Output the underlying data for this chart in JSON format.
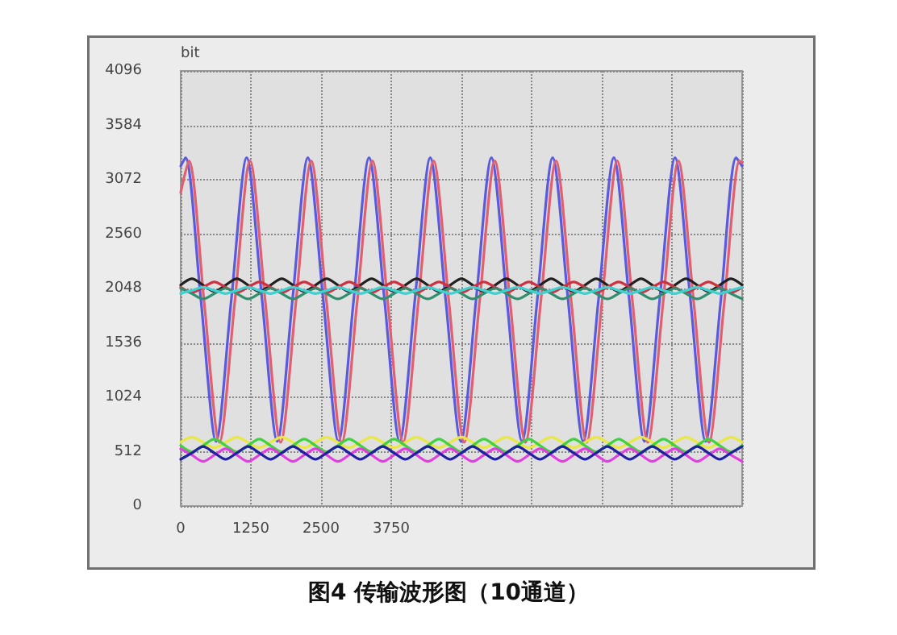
{
  "chart_data": {
    "type": "line",
    "title": "图4 传输波形图（10通道）",
    "ylabel": "bit",
    "x": [
      0,
      200,
      400,
      600,
      800,
      1000,
      1200,
      1400,
      1600,
      1800,
      2000,
      2200,
      2400,
      2600,
      2800,
      3000,
      3200,
      3400,
      3600,
      3800,
      4000,
      4200,
      4400,
      4600,
      4800,
      5000,
      5200,
      5400,
      5600,
      5800,
      6000,
      6200,
      6400,
      6600,
      6800,
      7000,
      7200,
      7400,
      7600,
      7800,
      8000,
      8200,
      8400,
      8600,
      8800,
      9000,
      9200,
      9400,
      9600,
      9800,
      10000
    ],
    "series": [
      {
        "color": "#5a5ae0",
        "x": [
          0,
          85,
          358,
          630,
          903,
          1175,
          1448,
          1720,
          1993,
          2265,
          2538,
          2810,
          3083,
          3355,
          3628,
          3900,
          4173,
          4445,
          4718,
          4990,
          5263,
          5535,
          5808,
          6080,
          6353,
          6625,
          6898,
          7170,
          7443,
          7715,
          7988,
          8260,
          8533,
          8805,
          9078,
          9350,
          9623,
          9895,
          10000
        ],
        "values": [
          3200,
          3280,
          1950,
          610,
          1950,
          3280,
          1950,
          610,
          1950,
          3280,
          1950,
          610,
          1950,
          3280,
          1950,
          610,
          1950,
          3280,
          1950,
          610,
          1950,
          3280,
          1950,
          610,
          1950,
          3280,
          1950,
          610,
          1950,
          3280,
          1950,
          610,
          1950,
          3280,
          1950,
          610,
          1950,
          3280,
          3200
        ]
      },
      {
        "color": "#e06070",
        "x": [
          0,
          145,
          418,
          690,
          963,
          1235,
          1508,
          1780,
          2053,
          2325,
          2598,
          2870,
          3143,
          3415,
          3688,
          3960,
          4233,
          4505,
          4778,
          5050,
          5323,
          5595,
          5868,
          6140,
          6413,
          6685,
          6958,
          7230,
          7503,
          7775,
          8048,
          8320,
          8593,
          8865,
          9138,
          9410,
          9683,
          9955,
          10000
        ],
        "values": [
          2950,
          3250,
          1920,
          600,
          1920,
          3250,
          1920,
          600,
          1920,
          3250,
          1920,
          600,
          1920,
          3250,
          1920,
          600,
          1920,
          3250,
          1920,
          600,
          1920,
          3250,
          1920,
          600,
          1920,
          3250,
          1920,
          600,
          1920,
          3250,
          1920,
          600,
          1920,
          3250,
          1920,
          600,
          1920,
          3250,
          3230
        ]
      },
      {
        "color": "#202020",
        "values": [
          2080,
          2140,
          2080,
          2020,
          2080,
          2140,
          2080,
          2020,
          2080,
          2140,
          2080,
          2020,
          2080,
          2140,
          2080,
          2020,
          2080,
          2140,
          2080,
          2020,
          2080,
          2140,
          2080,
          2020,
          2080,
          2140,
          2080,
          2020,
          2080,
          2140,
          2080,
          2020,
          2080,
          2140,
          2080,
          2020,
          2080,
          2140,
          2080,
          2020,
          2080,
          2140,
          2080,
          2020,
          2080,
          2140,
          2080,
          2020,
          2080,
          2140,
          2080
        ]
      },
      {
        "color": "#d03040",
        "values": [
          2060,
          2010,
          2060,
          2110,
          2060,
          2010,
          2060,
          2110,
          2060,
          2010,
          2060,
          2110,
          2060,
          2010,
          2060,
          2110,
          2060,
          2010,
          2060,
          2110,
          2060,
          2010,
          2060,
          2110,
          2060,
          2010,
          2060,
          2110,
          2060,
          2010,
          2060,
          2110,
          2060,
          2010,
          2060,
          2110,
          2060,
          2010,
          2060,
          2110,
          2060,
          2010,
          2060,
          2110,
          2060,
          2010,
          2060,
          2110,
          2060,
          2010,
          2060
        ]
      },
      {
        "color": "#2f8f6f",
        "values": [
          2050,
          2000,
          1950,
          2000,
          2050,
          2000,
          1950,
          2000,
          2050,
          2000,
          1950,
          2000,
          2050,
          2000,
          1950,
          2000,
          2050,
          2000,
          1950,
          2000,
          2050,
          2000,
          1950,
          2000,
          2050,
          2000,
          1950,
          2000,
          2050,
          2000,
          1950,
          2000,
          2050,
          2000,
          1950,
          2000,
          2050,
          2000,
          1950,
          2000,
          2050,
          2000,
          1950,
          2000,
          2050,
          2000,
          1950,
          2000,
          2050,
          2000,
          1950
        ]
      },
      {
        "color": "#40d0d0",
        "values": [
          2000,
          2030,
          2060,
          2030,
          2000,
          2030,
          2060,
          2030,
          2000,
          2030,
          2060,
          2030,
          2000,
          2030,
          2060,
          2030,
          2000,
          2030,
          2060,
          2030,
          2000,
          2030,
          2060,
          2030,
          2000,
          2030,
          2060,
          2030,
          2000,
          2030,
          2060,
          2030,
          2000,
          2030,
          2060,
          2030,
          2000,
          2030,
          2060,
          2030,
          2000,
          2030,
          2060,
          2030,
          2000,
          2030,
          2060,
          2030,
          2000,
          2030,
          2060
        ]
      },
      {
        "color": "#e8e840",
        "values": [
          600,
          650,
          600,
          550,
          600,
          650,
          600,
          550,
          600,
          650,
          600,
          550,
          600,
          650,
          600,
          550,
          600,
          650,
          600,
          550,
          600,
          650,
          600,
          550,
          600,
          650,
          600,
          550,
          600,
          650,
          600,
          550,
          600,
          650,
          600,
          550,
          600,
          650,
          600,
          550,
          600,
          650,
          600,
          550,
          600,
          650,
          600,
          550,
          600,
          650,
          600
        ]
      },
      {
        "color": "#40d040",
        "values": [
          570,
          510,
          570,
          630,
          570,
          510,
          570,
          630,
          570,
          510,
          570,
          630,
          570,
          510,
          570,
          630,
          570,
          510,
          570,
          630,
          570,
          510,
          570,
          630,
          570,
          510,
          570,
          630,
          570,
          510,
          570,
          630,
          570,
          510,
          570,
          630,
          570,
          510,
          570,
          630,
          570,
          510,
          570,
          630,
          570,
          510,
          570,
          630,
          570,
          510,
          570
        ]
      },
      {
        "color": "#e040e0",
        "values": [
          540,
          480,
          420,
          480,
          540,
          480,
          420,
          480,
          540,
          480,
          420,
          480,
          540,
          480,
          420,
          480,
          540,
          480,
          420,
          480,
          540,
          480,
          420,
          480,
          540,
          480,
          420,
          480,
          540,
          480,
          420,
          480,
          540,
          480,
          420,
          480,
          540,
          480,
          420,
          480,
          540,
          480,
          420,
          480,
          540,
          480,
          420,
          480,
          540,
          480,
          420
        ]
      },
      {
        "color": "#2020a0",
        "values": [
          440,
          500,
          560,
          500,
          440,
          500,
          560,
          500,
          440,
          500,
          560,
          500,
          440,
          500,
          560,
          500,
          440,
          500,
          560,
          500,
          440,
          500,
          560,
          500,
          440,
          500,
          560,
          500,
          440,
          500,
          560,
          500,
          440,
          500,
          560,
          500,
          440,
          500,
          560,
          500,
          440,
          500,
          560,
          500,
          440,
          500,
          560,
          500,
          440,
          500,
          560
        ]
      }
    ],
    "xlim": [
      0,
      10000
    ],
    "xticks": [
      0,
      1250,
      2500,
      3750,
      {
        "value": 5000,
        "label": null
      },
      {
        "value": 6250,
        "label": null
      },
      {
        "value": 7500,
        "label": null
      },
      {
        "value": 8750,
        "label": null
      },
      {
        "value": 10000,
        "label": null
      }
    ],
    "ylim": [
      0,
      4096
    ],
    "yticks": [
      0,
      512,
      1024,
      1536,
      2048,
      2560,
      3072,
      3584,
      4096
    ],
    "grid": true,
    "marker": "none",
    "line_style": "solid"
  }
}
